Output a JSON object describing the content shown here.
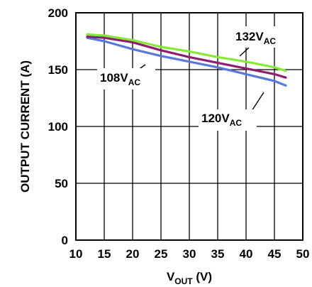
{
  "chart_data": {
    "type": "line",
    "xlabel": {
      "main": "V",
      "sub": "OUT",
      "unit": " (V)"
    },
    "ylabel": "OUTPUT CURRENT (A)",
    "xlim": [
      10,
      50
    ],
    "ylim": [
      0,
      200
    ],
    "xticks": [
      "10",
      "15",
      "20",
      "25",
      "30",
      "35",
      "40",
      "45",
      "50"
    ],
    "yticks": [
      "0",
      "50",
      "100",
      "150",
      "200"
    ],
    "grid": true,
    "series": [
      {
        "name": {
          "main": "108V",
          "sub": "AC"
        },
        "color": "#5a78d8",
        "x": [
          12,
          15,
          20,
          25,
          30,
          35,
          40,
          45,
          47
        ],
        "y": [
          178,
          175,
          168,
          162,
          157,
          152,
          146,
          140,
          136
        ]
      },
      {
        "name": {
          "main": "120V",
          "sub": "AC"
        },
        "color": "#8e1e6e",
        "x": [
          12,
          15,
          20,
          25,
          30,
          35,
          40,
          45,
          47
        ],
        "y": [
          179,
          178,
          174,
          167,
          161,
          156,
          151,
          146,
          143
        ]
      },
      {
        "name": {
          "main": "132V",
          "sub": "AC"
        },
        "color": "#88e838",
        "x": [
          12,
          15,
          20,
          25,
          30,
          35,
          40,
          45,
          47
        ],
        "y": [
          181,
          180,
          176,
          170,
          166,
          161,
          157,
          152,
          149
        ]
      }
    ]
  }
}
